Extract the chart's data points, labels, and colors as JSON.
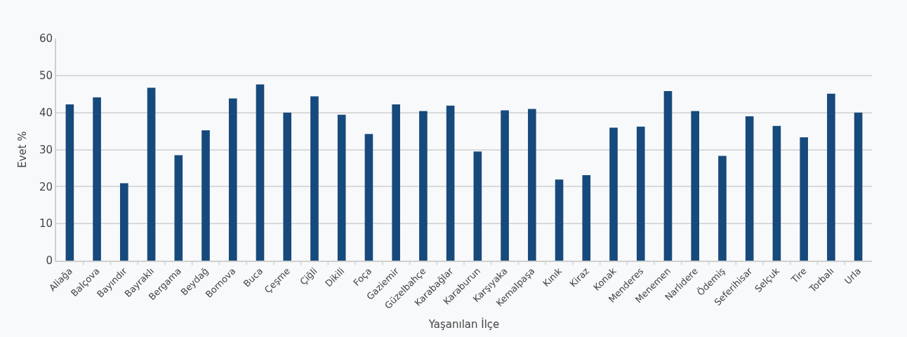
{
  "chart_data": {
    "type": "bar",
    "xlabel": "Yaşanılan İlçe",
    "ylabel": "Evet %",
    "categories": [
      "Aliağa",
      "Balçova",
      "Bayındır",
      "Bayraklı",
      "Bergama",
      "Beydağ",
      "Bornova",
      "Buca",
      "Çeşme",
      "Çiğli",
      "Dikili",
      "Foça",
      "Gaziemir",
      "Güzelbahçe",
      "Karabağlar",
      "Karaburun",
      "Karşıyaka",
      "Kemalpaşa",
      "Kınık",
      "Kiraz",
      "Konak",
      "Menderes",
      "Menemen",
      "Narlıdere",
      "Ödemiş",
      "Seferihisar",
      "Selçuk",
      "Tire",
      "Torbalı",
      "Urla"
    ],
    "values": [
      42.2,
      44.1,
      20.9,
      46.7,
      28.5,
      35.2,
      43.8,
      47.6,
      40.0,
      44.4,
      39.4,
      34.2,
      42.2,
      40.4,
      41.9,
      29.5,
      40.6,
      41.0,
      21.9,
      23.1,
      35.9,
      36.2,
      45.8,
      40.4,
      28.3,
      39.0,
      36.4,
      33.3,
      45.1,
      40.0
    ],
    "color": "#174a7c",
    "ylim": [
      0,
      60
    ],
    "yticks": [
      0,
      10,
      20,
      30,
      40,
      50,
      60
    ],
    "grid": "y"
  }
}
